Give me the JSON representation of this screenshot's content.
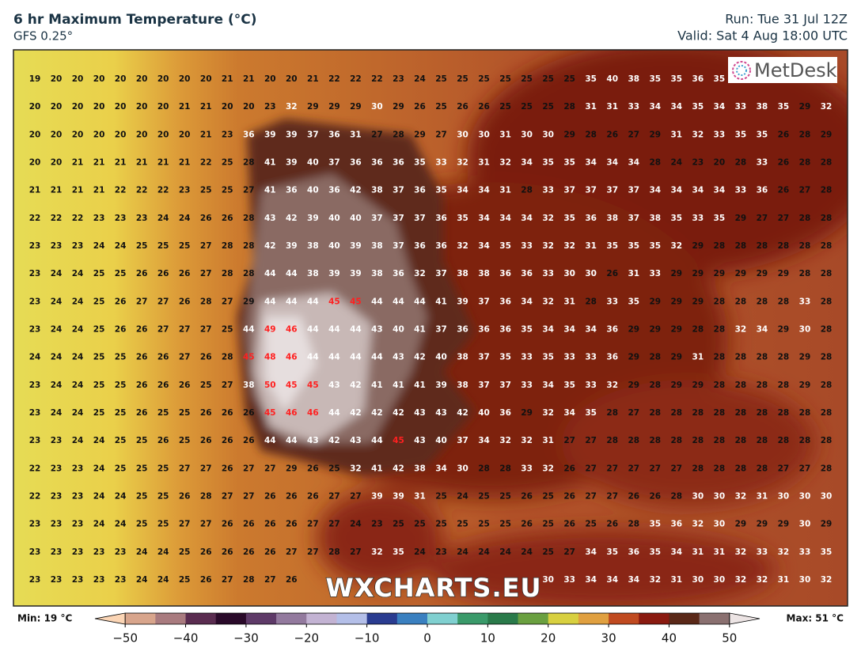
{
  "header": {
    "title": "6 hr Maximum Temperature (°C)",
    "model": "GFS 0.25°",
    "run": "Run: Tue 31 Jul 12Z",
    "valid": "Valid: Sat 4 Aug 18:00 UTC"
  },
  "map": {
    "label_style": {
      "low_color": "#111111",
      "high_color": "#ffffff",
      "extreme_color": "#ff2020",
      "white_from": 30,
      "red_from": 45
    },
    "grid": [
      [
        19,
        20,
        20,
        20,
        20,
        20,
        20,
        20,
        20,
        21,
        21,
        20,
        20,
        21,
        22,
        22,
        22,
        23,
        24,
        25,
        25,
        25,
        25,
        25,
        25,
        25,
        35,
        40,
        38,
        35,
        35,
        36,
        35,
        null,
        null,
        null,
        null,
        null
      ],
      [
        20,
        20,
        20,
        20,
        20,
        20,
        20,
        21,
        21,
        20,
        20,
        23,
        32,
        29,
        29,
        29,
        30,
        29,
        26,
        25,
        26,
        26,
        25,
        25,
        25,
        28,
        31,
        31,
        33,
        34,
        34,
        35,
        34,
        33,
        38,
        35,
        29,
        32
      ],
      [
        20,
        20,
        20,
        20,
        20,
        20,
        20,
        20,
        21,
        23,
        36,
        39,
        39,
        37,
        36,
        31,
        27,
        28,
        29,
        27,
        30,
        30,
        31,
        30,
        30,
        29,
        28,
        26,
        27,
        29,
        31,
        32,
        33,
        35,
        35,
        26,
        28,
        29
      ],
      [
        20,
        20,
        21,
        21,
        21,
        21,
        21,
        21,
        22,
        25,
        28,
        41,
        39,
        40,
        37,
        36,
        36,
        36,
        35,
        33,
        32,
        31,
        32,
        34,
        35,
        35,
        34,
        34,
        34,
        28,
        24,
        23,
        20,
        28,
        33,
        26,
        28,
        28
      ],
      [
        21,
        21,
        21,
        21,
        22,
        22,
        22,
        23,
        25,
        25,
        27,
        41,
        36,
        40,
        36,
        42,
        38,
        37,
        36,
        35,
        34,
        34,
        31,
        28,
        33,
        37,
        37,
        37,
        37,
        34,
        34,
        34,
        34,
        33,
        36,
        26,
        27,
        28
      ],
      [
        22,
        22,
        22,
        23,
        23,
        23,
        24,
        24,
        26,
        26,
        28,
        43,
        42,
        39,
        40,
        40,
        37,
        37,
        37,
        36,
        35,
        34,
        34,
        34,
        32,
        35,
        36,
        38,
        37,
        38,
        35,
        33,
        35,
        29,
        27,
        27,
        28,
        28
      ],
      [
        23,
        23,
        23,
        24,
        24,
        25,
        25,
        25,
        27,
        28,
        28,
        42,
        39,
        38,
        40,
        39,
        38,
        37,
        36,
        36,
        32,
        34,
        35,
        33,
        32,
        32,
        31,
        35,
        35,
        35,
        32,
        29,
        28,
        28,
        28,
        28,
        28,
        28
      ],
      [
        23,
        24,
        24,
        25,
        25,
        26,
        26,
        26,
        27,
        28,
        28,
        44,
        44,
        38,
        39,
        39,
        38,
        36,
        32,
        37,
        38,
        38,
        36,
        36,
        33,
        30,
        30,
        26,
        31,
        33,
        29,
        29,
        29,
        29,
        29,
        29,
        28,
        28
      ],
      [
        23,
        24,
        24,
        25,
        26,
        27,
        27,
        26,
        28,
        27,
        29,
        44,
        44,
        44,
        45,
        45,
        44,
        44,
        44,
        41,
        39,
        37,
        36,
        34,
        32,
        31,
        28,
        33,
        35,
        29,
        29,
        29,
        28,
        28,
        28,
        28,
        33,
        28
      ],
      [
        23,
        24,
        24,
        25,
        26,
        26,
        27,
        27,
        27,
        25,
        44,
        49,
        46,
        44,
        44,
        44,
        43,
        40,
        41,
        37,
        36,
        36,
        36,
        35,
        34,
        34,
        34,
        36,
        29,
        29,
        29,
        28,
        28,
        32,
        34,
        29,
        30,
        28
      ],
      [
        24,
        24,
        24,
        25,
        25,
        26,
        26,
        27,
        26,
        28,
        45,
        48,
        46,
        44,
        44,
        44,
        44,
        43,
        42,
        40,
        38,
        37,
        35,
        33,
        35,
        33,
        33,
        36,
        29,
        28,
        29,
        31,
        28,
        28,
        28,
        28,
        29,
        28
      ],
      [
        23,
        24,
        24,
        25,
        25,
        26,
        26,
        26,
        25,
        27,
        38,
        50,
        45,
        45,
        43,
        42,
        41,
        41,
        41,
        39,
        38,
        37,
        37,
        33,
        34,
        35,
        33,
        32,
        29,
        28,
        29,
        29,
        28,
        28,
        28,
        28,
        29,
        28
      ],
      [
        23,
        24,
        24,
        25,
        25,
        26,
        25,
        25,
        26,
        26,
        26,
        45,
        46,
        46,
        44,
        42,
        42,
        42,
        43,
        43,
        42,
        40,
        36,
        29,
        32,
        34,
        35,
        28,
        27,
        28,
        28,
        28,
        28,
        28,
        28,
        28,
        28,
        28
      ],
      [
        23,
        23,
        24,
        24,
        25,
        25,
        26,
        25,
        26,
        26,
        26,
        44,
        44,
        43,
        42,
        43,
        44,
        45,
        43,
        40,
        37,
        34,
        32,
        32,
        31,
        27,
        27,
        28,
        28,
        28,
        28,
        28,
        28,
        28,
        28,
        28,
        28,
        28
      ],
      [
        22,
        23,
        23,
        24,
        25,
        25,
        25,
        27,
        27,
        26,
        27,
        27,
        29,
        26,
        25,
        32,
        41,
        42,
        38,
        34,
        30,
        28,
        28,
        33,
        32,
        26,
        27,
        27,
        27,
        27,
        27,
        28,
        28,
        28,
        28,
        27,
        27,
        28
      ],
      [
        22,
        23,
        23,
        24,
        24,
        25,
        25,
        26,
        28,
        27,
        27,
        26,
        26,
        26,
        27,
        27,
        39,
        39,
        31,
        25,
        24,
        25,
        25,
        26,
        25,
        26,
        27,
        27,
        26,
        26,
        28,
        30,
        30,
        32,
        31,
        30,
        30,
        30
      ],
      [
        23,
        23,
        23,
        24,
        24,
        25,
        25,
        27,
        27,
        26,
        26,
        26,
        26,
        27,
        27,
        24,
        23,
        25,
        25,
        25,
        25,
        25,
        25,
        26,
        25,
        26,
        25,
        26,
        28,
        35,
        36,
        32,
        30,
        29,
        29,
        29,
        30,
        29
      ],
      [
        23,
        23,
        23,
        23,
        23,
        24,
        24,
        25,
        26,
        26,
        26,
        26,
        27,
        27,
        28,
        27,
        32,
        35,
        24,
        23,
        24,
        24,
        24,
        24,
        25,
        27,
        34,
        35,
        36,
        35,
        34,
        31,
        31,
        32,
        33,
        32,
        33,
        35
      ],
      [
        23,
        23,
        23,
        23,
        23,
        24,
        24,
        25,
        26,
        27,
        28,
        27,
        26,
        null,
        null,
        null,
        null,
        null,
        null,
        null,
        null,
        null,
        null,
        null,
        30,
        33,
        34,
        34,
        34,
        32,
        31,
        30,
        30,
        32,
        32,
        31,
        30,
        32
      ]
    ]
  },
  "colorbar": {
    "min_label": "Min: 19 °C",
    "max_label": "Max: 51 °C",
    "lim": [
      -55,
      55
    ],
    "ticks": [
      {
        "value": -50,
        "label": "−50"
      },
      {
        "value": -40,
        "label": "−40"
      },
      {
        "value": -30,
        "label": "−30"
      },
      {
        "value": -20,
        "label": "−20"
      },
      {
        "value": -10,
        "label": "−10"
      },
      0,
      10,
      20,
      30,
      40,
      50
    ],
    "colors": [
      "#fbd5b5",
      "#d8a58c",
      "#a97b7f",
      "#5a2c50",
      "#2a0a2a",
      "#5e3a68",
      "#937a9e",
      "#c3b3d3",
      "#b4bfe8",
      "#2a3c90",
      "#3a80c0",
      "#80d0d0",
      "#3a9a6a",
      "#2a7a4a",
      "#6aa040",
      "#d8d040",
      "#e0a040",
      "#c04a20",
      "#8a1a10",
      "#5a2818",
      "#8a7070",
      "#ece4e4"
    ]
  },
  "branding": {
    "logo": "MetDesk",
    "watermark": "WXCHARTS.EU"
  }
}
